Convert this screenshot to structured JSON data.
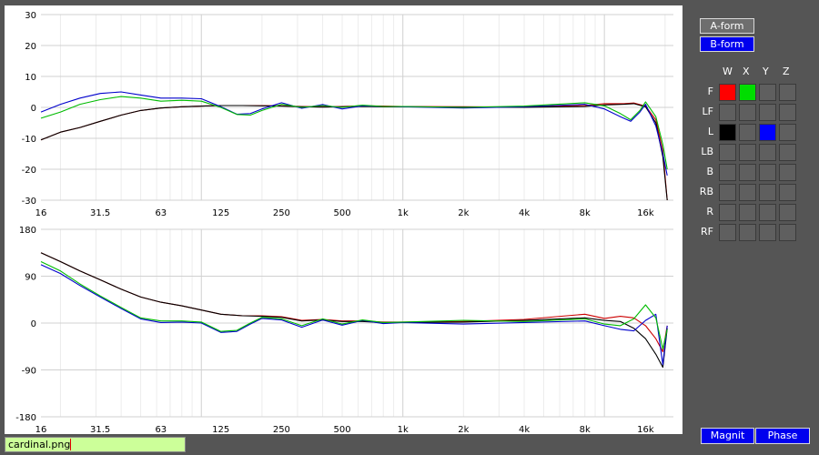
{
  "buttons": {
    "a_form": "A-form",
    "b_form": "B-form",
    "magnit": "Magnit",
    "phase": "Phase"
  },
  "filename": "cardinal.png",
  "matrix": {
    "columns": [
      "W",
      "X",
      "Y",
      "Z"
    ],
    "rows": [
      "F",
      "LF",
      "L",
      "LB",
      "B",
      "RB",
      "R",
      "RF"
    ],
    "active": [
      {
        "row": "F",
        "col": "W",
        "color": "#ff0000"
      },
      {
        "row": "F",
        "col": "X",
        "color": "#00dd00"
      },
      {
        "row": "L",
        "col": "W",
        "color": "#000000"
      },
      {
        "row": "L",
        "col": "Y",
        "color": "#0000ff"
      }
    ]
  },
  "colors": {
    "background": "#555555",
    "panel": "#ffffff",
    "series_red": "#cc0000",
    "series_green": "#00bb00",
    "series_black": "#000000",
    "series_blue": "#0000cc"
  },
  "chart_data": [
    {
      "type": "line",
      "x_scale": "log",
      "x_ticks": [
        16,
        31.5,
        63,
        125,
        250,
        500,
        1000,
        2000,
        4000,
        8000,
        16000
      ],
      "x_tick_labels": [
        "16",
        "31.5",
        "63",
        "125",
        "250",
        "500",
        "1k",
        "2k",
        "4k",
        "8k",
        "16k"
      ],
      "ylim": [
        -30,
        30
      ],
      "y_ticks": [
        -30,
        -20,
        -10,
        0,
        10,
        20,
        30
      ],
      "grid": true,
      "series": [
        {
          "color": "#cc0000",
          "x": [
            16,
            20,
            25,
            31.5,
            40,
            50,
            63,
            80,
            100,
            125,
            160,
            200,
            250,
            315,
            400,
            500,
            630,
            800,
            1000,
            2000,
            4000,
            8000,
            10000,
            12500,
            14000,
            16000,
            18000,
            19500,
            20500
          ],
          "y": [
            -10.5,
            -8,
            -6.5,
            -4.5,
            -2.5,
            -1,
            -0.2,
            0.2,
            0.4,
            0.6,
            0.6,
            0.6,
            0.5,
            0.3,
            0.2,
            0.3,
            0.5,
            0.4,
            0.3,
            0.2,
            0.1,
            0.6,
            1.2,
            1.2,
            1.4,
            0.4,
            -4,
            -14,
            -30
          ]
        },
        {
          "color": "#000000",
          "x": [
            16,
            20,
            25,
            31.5,
            40,
            50,
            63,
            80,
            100,
            125,
            160,
            200,
            250,
            315,
            400,
            500,
            630,
            800,
            1000,
            2000,
            4000,
            8000,
            10000,
            12500,
            14000,
            16000,
            18000,
            19500,
            20500
          ],
          "y": [
            -10.5,
            -8,
            -6.5,
            -4.5,
            -2.5,
            -1,
            -0.2,
            0.2,
            0.4,
            0.6,
            0.6,
            0.5,
            0.4,
            0.2,
            0.1,
            0.2,
            0.3,
            0.2,
            0.2,
            0.1,
            0.0,
            0.3,
            0.8,
            1.0,
            1.2,
            0.2,
            -5,
            -16,
            -31
          ]
        },
        {
          "color": "#0000cc",
          "x": [
            16,
            20,
            25,
            31.5,
            40,
            50,
            63,
            80,
            100,
            125,
            150,
            175,
            200,
            250,
            315,
            400,
            500,
            630,
            800,
            1000,
            2000,
            4000,
            8000,
            10000,
            12000,
            13500,
            15000,
            16000,
            18000,
            19500,
            20500
          ],
          "y": [
            -1.5,
            1,
            3,
            4.5,
            5,
            4,
            3,
            3,
            2.8,
            0.2,
            -2.2,
            -2,
            -0.5,
            1.5,
            -0.3,
            0.9,
            -0.5,
            0.5,
            0.3,
            0.2,
            -0.2,
            0.2,
            1,
            -0.5,
            -3,
            -4.5,
            -1.5,
            1,
            -6,
            -15,
            -22
          ]
        },
        {
          "color": "#00bb00",
          "x": [
            16,
            20,
            25,
            31.5,
            40,
            50,
            63,
            80,
            100,
            125,
            150,
            175,
            200,
            250,
            315,
            400,
            500,
            630,
            800,
            1000,
            2000,
            4000,
            8000,
            10000,
            12000,
            13500,
            15000,
            16000,
            18000,
            19500,
            20500
          ],
          "y": [
            -3.5,
            -1.5,
            1,
            2.5,
            3.5,
            3,
            2,
            2.3,
            2,
            0,
            -2.3,
            -2.5,
            -1,
            1,
            0,
            0.6,
            0,
            0.7,
            0.3,
            0.3,
            0,
            0.4,
            1.5,
            0.5,
            -2,
            -4,
            -1,
            1.8,
            -3,
            -12,
            -20
          ]
        }
      ]
    },
    {
      "type": "line",
      "x_scale": "log",
      "x_ticks": [
        16,
        31.5,
        63,
        125,
        250,
        500,
        1000,
        2000,
        4000,
        8000,
        16000
      ],
      "x_tick_labels": [
        "16",
        "31.5",
        "63",
        "125",
        "250",
        "500",
        "1k",
        "2k",
        "4k",
        "8k",
        "16k"
      ],
      "ylim": [
        -180,
        180
      ],
      "y_ticks": [
        -180,
        -90,
        0,
        90,
        180
      ],
      "grid": true,
      "series": [
        {
          "color": "#cc0000",
          "x": [
            16,
            20,
            25,
            31.5,
            40,
            50,
            63,
            80,
            100,
            125,
            160,
            200,
            250,
            315,
            400,
            500,
            630,
            800,
            1000,
            2000,
            4000,
            8000,
            10000,
            12000,
            14000,
            16000,
            18000,
            19500,
            20500
          ],
          "y": [
            135,
            118,
            100,
            83,
            65,
            50,
            40,
            33,
            25,
            17,
            14,
            14,
            12,
            5,
            7,
            4,
            4,
            2,
            2,
            3,
            7,
            17,
            9,
            13,
            10,
            -5,
            -30,
            -55,
            -5
          ]
        },
        {
          "color": "#000000",
          "x": [
            16,
            20,
            25,
            31.5,
            40,
            50,
            63,
            80,
            100,
            125,
            160,
            200,
            250,
            315,
            400,
            500,
            630,
            800,
            1000,
            2000,
            4000,
            8000,
            10000,
            12000,
            14000,
            16000,
            18000,
            19500,
            20500
          ],
          "y": [
            135,
            118,
            100,
            83,
            65,
            50,
            40,
            33,
            25,
            17,
            14,
            13,
            11,
            4,
            6,
            3,
            3,
            1,
            1,
            2,
            5,
            10,
            5,
            3,
            -10,
            -30,
            -60,
            -85,
            -10
          ]
        },
        {
          "color": "#0000cc",
          "x": [
            16,
            20,
            25,
            31.5,
            40,
            50,
            63,
            80,
            100,
            125,
            150,
            175,
            200,
            250,
            315,
            400,
            500,
            630,
            800,
            1000,
            2000,
            4000,
            8000,
            10000,
            12000,
            14000,
            16000,
            18000,
            19500,
            20500
          ],
          "y": [
            112,
            95,
            72,
            50,
            28,
            8,
            1,
            2,
            0,
            -18,
            -16,
            -2,
            9,
            6,
            -8,
            6,
            -4,
            5,
            -1,
            1,
            -2,
            1,
            4,
            -5,
            -12,
            -15,
            5,
            17,
            -80,
            -5
          ]
        },
        {
          "color": "#00bb00",
          "x": [
            16,
            20,
            25,
            31.5,
            40,
            50,
            63,
            80,
            100,
            125,
            150,
            175,
            200,
            250,
            315,
            400,
            500,
            630,
            800,
            1000,
            2000,
            4000,
            8000,
            10000,
            12000,
            14000,
            16000,
            18000,
            19500,
            20500
          ],
          "y": [
            118,
            100,
            75,
            52,
            30,
            10,
            4,
            4,
            2,
            -16,
            -14,
            0,
            11,
            8,
            -5,
            8,
            -2,
            6,
            1,
            2,
            5,
            3,
            8,
            -2,
            -5,
            8,
            35,
            10,
            -50,
            -12
          ]
        }
      ]
    }
  ]
}
